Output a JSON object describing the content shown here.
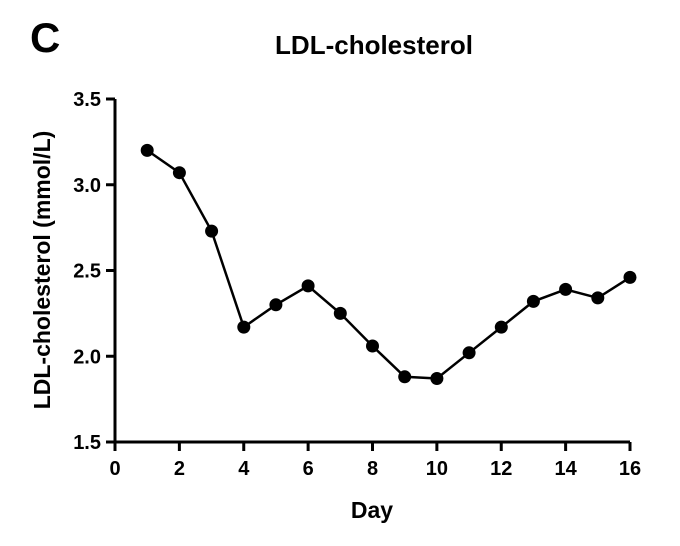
{
  "panel_label": "C",
  "chart_data": {
    "type": "line",
    "title": "LDL-cholesterol",
    "xlabel": "Day",
    "ylabel": "LDL-cholesterol (mmol/L)",
    "xlim": [
      0,
      16
    ],
    "ylim": [
      1.5,
      3.5
    ],
    "x_ticks": [
      "0",
      "2",
      "4",
      "6",
      "8",
      "10",
      "12",
      "14",
      "16"
    ],
    "y_ticks": [
      "1.5",
      "2.0",
      "2.5",
      "3.0",
      "3.5"
    ],
    "grid": false,
    "legend": "none",
    "series": [
      {
        "x": [
          1,
          2,
          3,
          4,
          5,
          6,
          7,
          8,
          9,
          10,
          11,
          12,
          13,
          14,
          15,
          16
        ],
        "values": [
          3.2,
          3.07,
          2.73,
          2.17,
          2.3,
          2.41,
          2.25,
          2.06,
          1.88,
          1.87,
          2.02,
          2.17,
          2.32,
          2.39,
          2.34,
          2.46
        ]
      }
    ]
  }
}
